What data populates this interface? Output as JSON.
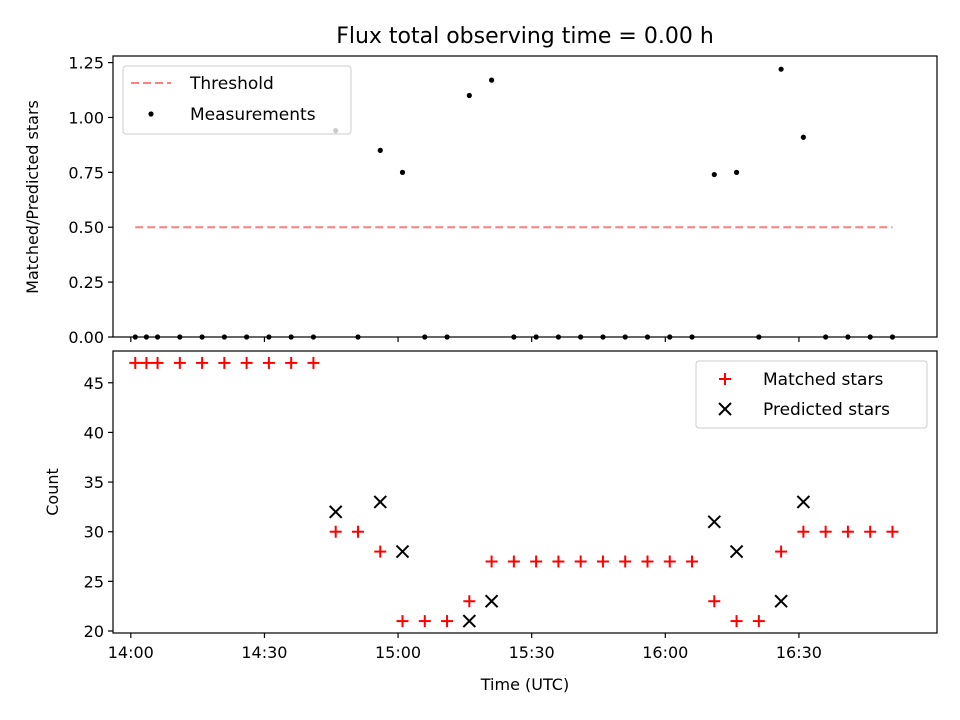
{
  "chart_data": {
    "type": "scatter",
    "title": "Flux total observing time = 0.00 h",
    "x_axis": {
      "label": "Time (UTC)",
      "range_minutes_from_14_00": [
        -4,
        181
      ],
      "ticks": [
        {
          "value": 0,
          "label": "14:00"
        },
        {
          "value": 30,
          "label": "14:30"
        },
        {
          "value": 60,
          "label": "15:00"
        },
        {
          "value": 90,
          "label": "15:30"
        },
        {
          "value": 120,
          "label": "16:00"
        },
        {
          "value": 150,
          "label": "16:30"
        }
      ]
    },
    "times_minutes_from_14_00": [
      1,
      3.5,
      6,
      11,
      16,
      21,
      26,
      31,
      36,
      41,
      46,
      51,
      56,
      61,
      66,
      71,
      76,
      81,
      86,
      91,
      96,
      101,
      106,
      111,
      116,
      121,
      126,
      131,
      136,
      141,
      146,
      151,
      156,
      161,
      166,
      171
    ],
    "panels": [
      {
        "id": "ratio",
        "ylabel": "Matched/Predicted stars",
        "ylim": [
          0,
          1.28
        ],
        "yticks": [
          0.0,
          0.25,
          0.5,
          0.75,
          1.0,
          1.25
        ],
        "ytick_labels": [
          "0.00",
          "0.25",
          "0.50",
          "0.75",
          "1.00",
          "1.25"
        ],
        "threshold": {
          "name": "Threshold",
          "value": 0.5,
          "x_start": 1,
          "x_end": 171,
          "color": "#ff7f7f"
        },
        "measurements": {
          "name": "Measurements",
          "color": "#000000",
          "values": [
            0,
            0,
            0,
            0,
            0,
            0,
            0,
            0,
            0,
            0,
            0.94,
            0,
            0.85,
            0.75,
            0,
            0,
            1.1,
            1.17,
            0,
            0,
            0,
            0,
            0,
            0,
            0,
            0,
            0,
            0.74,
            0.75,
            0,
            1.22,
            0.91,
            0,
            0,
            0,
            0
          ]
        },
        "legend": {
          "position": "upper left",
          "entries": [
            "Threshold",
            "Measurements"
          ]
        }
      },
      {
        "id": "count",
        "ylabel": "Count",
        "ylim": [
          19.8,
          48.2
        ],
        "yticks": [
          20,
          25,
          30,
          35,
          40,
          45
        ],
        "ytick_labels": [
          "20",
          "25",
          "30",
          "35",
          "40",
          "45"
        ],
        "series": [
          {
            "name": "Matched stars",
            "marker": "+",
            "color": "#ff0000",
            "values": [
              47,
              47,
              47,
              47,
              47,
              47,
              47,
              47,
              47,
              47,
              30,
              30,
              28,
              21,
              21,
              21,
              23,
              27,
              27,
              27,
              27,
              27,
              27,
              27,
              27,
              27,
              27,
              23,
              21,
              21,
              28,
              30,
              30,
              30,
              30,
              30
            ]
          },
          {
            "name": "Predicted stars",
            "marker": "x",
            "color": "#000000",
            "values": [
              null,
              null,
              null,
              null,
              null,
              null,
              null,
              null,
              null,
              null,
              32,
              null,
              33,
              28,
              null,
              null,
              21,
              23,
              null,
              null,
              null,
              null,
              null,
              null,
              null,
              null,
              null,
              31,
              28,
              null,
              23,
              33,
              null,
              null,
              null,
              null
            ]
          }
        ],
        "legend": {
          "position": "upper right",
          "entries": [
            "Matched stars",
            "Predicted stars"
          ]
        }
      }
    ]
  }
}
